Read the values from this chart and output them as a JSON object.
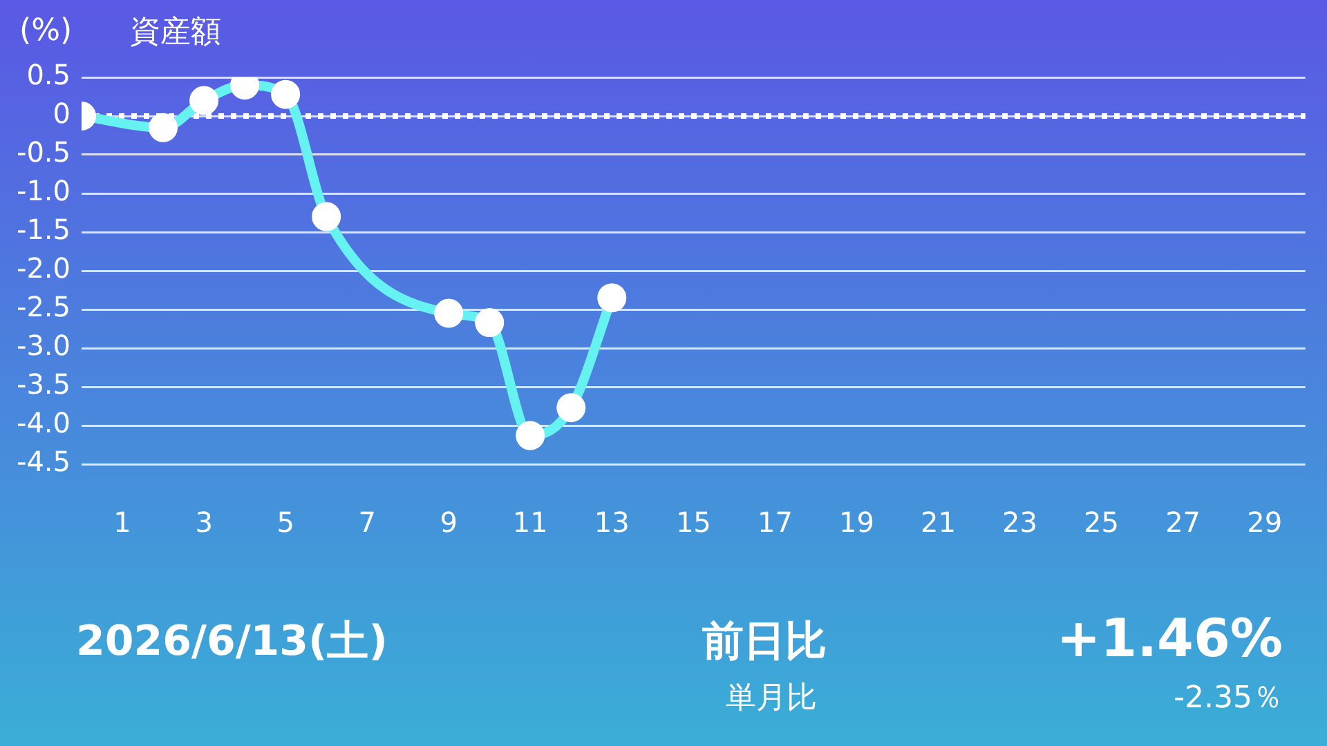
{
  "chart_data": {
    "type": "line",
    "title": "資産額",
    "ylabel": "(%)",
    "x": [
      0,
      2,
      3,
      4,
      5,
      6,
      9,
      10,
      11,
      12,
      13
    ],
    "series": [
      {
        "color": "#66f2f0",
        "values": [
          0,
          -0.15,
          0.2,
          0.4,
          0.28,
          -1.3,
          -2.55,
          -2.67,
          -4.13,
          -3.77,
          -2.35
        ]
      }
    ],
    "xlim": [
      0,
      30
    ],
    "xticks": [
      1,
      3,
      5,
      7,
      9,
      11,
      13,
      15,
      17,
      19,
      21,
      23,
      25,
      27,
      29
    ],
    "ylim": [
      -4.5,
      0.5
    ],
    "yticks": [
      0.5,
      0,
      {
        "value": -0.5,
        "label": "-0.5"
      },
      {
        "value": -1,
        "label": "-1.0"
      },
      {
        "value": -1.5,
        "label": "-1.5"
      },
      {
        "value": -2,
        "label": "-2.0"
      },
      {
        "value": -2.5,
        "label": "-2.5"
      },
      {
        "value": -3,
        "label": "-3.0"
      },
      {
        "value": -3.5,
        "label": "-3.5"
      },
      {
        "value": -4,
        "label": "-4.0"
      },
      {
        "value": -4.5,
        "label": "-4.5"
      }
    ],
    "grid": "y",
    "legend": false,
    "marker": "circle",
    "line_style": "solid",
    "ref_lines": [
      {
        "axis": "y",
        "value": 0,
        "color": "#ffffff",
        "line_style": "dotted"
      }
    ],
    "annotations": [
      "2026/6/13(土)",
      "前日比",
      "+1.46%",
      "単月比",
      "-2.35％"
    ]
  }
}
